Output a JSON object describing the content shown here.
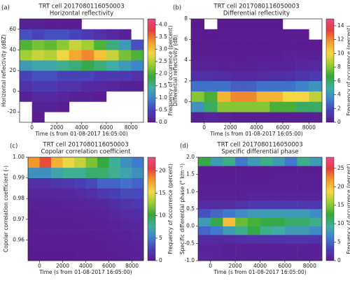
{
  "chart_data": [
    {
      "type": "heatmap",
      "panel_label": "(a)",
      "title": "TRT cell 2017080116050003",
      "subtitle": "Horizontal reflectivity",
      "xlabel": "Time (s from 01-08-2017 16:05:00)",
      "ylabel": "Horizontal reflectivity (dBZ)",
      "colorbar_label": "Frequency of occurrence (percent)",
      "xlim": [
        -1000,
        9000
      ],
      "xticks": [
        0,
        2000,
        4000,
        6000,
        8000
      ],
      "ylim": [
        -30,
        70
      ],
      "yticks": [
        -20,
        0,
        20,
        40,
        60
      ],
      "clim": [
        0,
        4.25
      ],
      "cticks": [
        {
          "value": 0,
          "label": "0.0"
        },
        0.5,
        {
          "value": 1,
          "label": "1.0"
        },
        1.5,
        {
          "value": 2,
          "label": "2.0"
        },
        2.5,
        {
          "value": 3,
          "label": "3.0"
        },
        3.5,
        {
          "value": 4,
          "label": "4.0"
        }
      ],
      "colormap": [
        "#5c1a8e",
        "#4a3fb8",
        "#3f7fd0",
        "#3fb0a0",
        "#36a83a",
        "#9acd32",
        "#f5d742",
        "#f39c2a",
        "#e53e3e",
        "#e84a8a"
      ],
      "xbins": [
        -1000,
        0,
        1000,
        2000,
        3000,
        4000,
        5000,
        6000,
        7000,
        8000,
        9000
      ],
      "ybins": [
        -30,
        -20,
        -10,
        0,
        10,
        20,
        30,
        40,
        50,
        60,
        70
      ],
      "values": [
        [
          null,
          0.05,
          null,
          null,
          null,
          null,
          null,
          null,
          null,
          null
        ],
        [
          null,
          0.1,
          0.1,
          0.05,
          null,
          null,
          null,
          null,
          null,
          null
        ],
        [
          0.1,
          0.2,
          0.2,
          0.15,
          0.1,
          0.1,
          0.05,
          null,
          null,
          null
        ],
        [
          0.3,
          0.4,
          0.4,
          0.3,
          0.3,
          0.2,
          0.2,
          0.15,
          0.1,
          0.1
        ],
        [
          0.5,
          0.6,
          0.6,
          0.5,
          0.5,
          0.5,
          0.4,
          0.4,
          0.4,
          0.3
        ],
        [
          1.2,
          1.3,
          1.3,
          1.5,
          1.6,
          1.8,
          1.6,
          1.4,
          1.2,
          1.0
        ],
        [
          2.4,
          2.6,
          2.5,
          2.8,
          3.2,
          3.4,
          3.0,
          2.6,
          2.2,
          2.0
        ],
        [
          2.0,
          2.2,
          2.1,
          2.3,
          2.6,
          2.4,
          2.0,
          1.6,
          1.2,
          0.6
        ],
        [
          0.6,
          0.5,
          0.6,
          0.6,
          0.5,
          0.4,
          0.3,
          0.2,
          0.1,
          null
        ],
        [
          0.1,
          0.1,
          0.05,
          0.05,
          0.05,
          null,
          null,
          null,
          null,
          null
        ]
      ]
    },
    {
      "type": "heatmap",
      "panel_label": "(b)",
      "title": "TRT cell 2017080116050003",
      "subtitle": "Differential reflectivity",
      "xlabel": "Time (s from 01-08-2017 16:05:00)",
      "ylabel": "Differential reflectivity (dB)",
      "colorbar_label": "Frequency of occurrence (percent)",
      "xlim": [
        -1000,
        9000
      ],
      "xticks": [
        0,
        2000,
        4000,
        6000,
        8000
      ],
      "ylim": [
        -2,
        8
      ],
      "yticks": [
        0,
        2,
        4,
        6,
        8
      ],
      "clim": [
        0,
        15
      ],
      "cticks": [
        0,
        2,
        4,
        6,
        8,
        10,
        12,
        14
      ],
      "colormap": [
        "#5c1a8e",
        "#4a3fb8",
        "#3f7fd0",
        "#3fb0a0",
        "#36a83a",
        "#9acd32",
        "#f5d742",
        "#f39c2a",
        "#e53e3e",
        "#e84a8a"
      ],
      "xbins": [
        -1000,
        0,
        1000,
        2000,
        3000,
        4000,
        5000,
        6000,
        7000,
        8000,
        9000
      ],
      "ybins": [
        -2,
        -1,
        0,
        1,
        2,
        3,
        4,
        5,
        6,
        7,
        8
      ],
      "values": [
        [
          0.3,
          0.5,
          0.3,
          0.2,
          0.2,
          0.2,
          0.2,
          0.2,
          0.2,
          0.3
        ],
        [
          4,
          6,
          8,
          8,
          8,
          8,
          7,
          7,
          6,
          6
        ],
        [
          8,
          7,
          11,
          12,
          12,
          11,
          11,
          10,
          10,
          9
        ],
        [
          3,
          3,
          3,
          2.5,
          2.5,
          3,
          3,
          3,
          3.5,
          4
        ],
        [
          1,
          1,
          0.8,
          0.7,
          0.7,
          0.8,
          0.9,
          1,
          1.2,
          1.4
        ],
        [
          0.4,
          0.4,
          0.3,
          0.3,
          0.3,
          0.4,
          0.4,
          0.5,
          0.6,
          0.7
        ],
        [
          0.2,
          0.2,
          0.2,
          0.15,
          0.2,
          0.2,
          0.2,
          0.3,
          0.3,
          0.3
        ],
        [
          0.1,
          0.1,
          0.1,
          0.1,
          0.1,
          0.1,
          0.15,
          0.15,
          0.1,
          0.1
        ],
        [
          0.1,
          0.05,
          0.1,
          0.1,
          0.1,
          0.1,
          0.1,
          0.1,
          0.1,
          null
        ],
        [
          0.05,
          null,
          0.05,
          0.05,
          0.05,
          0.05,
          0.05,
          null,
          null,
          null
        ]
      ]
    },
    {
      "type": "heatmap",
      "panel_label": "(c)",
      "title": "TRT cell 2017080116050003",
      "subtitle": "Copolar correlation coefficient",
      "xlabel": "Time (s from 01-08-2017 16:05:00)",
      "ylabel": "Copolar correlation coefficient (-)",
      "colorbar_label": "Frequency of occurrence (percent)",
      "xlim": [
        -1000,
        9000
      ],
      "xticks": [
        0,
        2000,
        4000,
        6000,
        8000
      ],
      "ylim": [
        0.95,
        1.0
      ],
      "yticks": [
        0.96,
        0.97,
        0.98,
        0.99,
        {
          "value": 1,
          "label": "1.00"
        }
      ],
      "clim": [
        0,
        23
      ],
      "cticks": [
        0,
        5,
        10,
        15,
        20
      ],
      "colormap": [
        "#5c1a8e",
        "#4a3fb8",
        "#3f7fd0",
        "#3fb0a0",
        "#36a83a",
        "#9acd32",
        "#f5d742",
        "#f39c2a",
        "#e53e3e",
        "#e84a8a"
      ],
      "xbins": [
        -1000,
        0,
        1000,
        2000,
        3000,
        4000,
        5000,
        6000,
        7000,
        8000,
        9000
      ],
      "ybins": [
        0.95,
        0.955,
        0.96,
        0.965,
        0.97,
        0.975,
        0.98,
        0.985,
        0.99,
        0.995,
        1.0
      ],
      "values": [
        [
          0.1,
          0.1,
          0.1,
          0.1,
          0.2,
          0.2,
          0.2,
          0.3,
          0.4,
          0.5
        ],
        [
          0.2,
          0.2,
          0.2,
          0.2,
          0.2,
          0.2,
          0.3,
          0.4,
          0.5,
          0.6
        ],
        [
          0.2,
          0.2,
          0.2,
          0.2,
          0.3,
          0.3,
          0.4,
          0.5,
          0.6,
          0.8
        ],
        [
          0.3,
          0.3,
          0.3,
          0.3,
          0.3,
          0.4,
          0.5,
          0.6,
          0.8,
          1
        ],
        [
          0.3,
          0.4,
          0.4,
          0.4,
          0.5,
          0.5,
          0.6,
          0.9,
          1.2,
          1.4
        ],
        [
          0.5,
          0.5,
          0.5,
          0.6,
          0.7,
          0.8,
          1,
          1.4,
          1.8,
          2
        ],
        [
          0.8,
          0.8,
          0.9,
          1,
          1.2,
          1.5,
          2,
          2.5,
          3,
          3
        ],
        [
          1.5,
          1.5,
          1.8,
          2,
          2.5,
          3,
          4,
          4,
          4.5,
          4
        ],
        [
          6,
          6,
          7,
          8,
          8,
          9,
          9,
          8,
          7,
          6
        ],
        [
          18,
          20,
          17,
          15,
          14,
          12,
          10,
          8,
          6,
          5
        ]
      ]
    },
    {
      "type": "heatmap",
      "panel_label": "(d)",
      "title": "TRT cell 2017080116050003",
      "subtitle": "Specific differential phase",
      "xlabel": "Time (s from 01-08-2017 16:05:00)",
      "ylabel": "Specific differential phase (° km⁻¹)",
      "colorbar_label": "Frequency of occurrence (percent)",
      "xlim": [
        -1000,
        9000
      ],
      "xticks": [
        0,
        2000,
        4000,
        6000,
        8000
      ],
      "ylim": [
        -1,
        2
      ],
      "yticks": [
        {
          "value": -1,
          "label": "-1.0"
        },
        -0.5,
        {
          "value": 0,
          "label": "0.0"
        },
        0.5,
        {
          "value": 1,
          "label": "1.0"
        },
        1.5,
        {
          "value": 2,
          "label": "2.0"
        }
      ],
      "clim": [
        0,
        28
      ],
      "cticks": [
        0,
        5,
        10,
        15,
        20,
        25
      ],
      "colormap": [
        "#5c1a8e",
        "#4a3fb8",
        "#3f7fd0",
        "#3fb0a0",
        "#36a83a",
        "#9acd32",
        "#f5d742",
        "#f39c2a",
        "#e53e3e",
        "#e84a8a"
      ],
      "xbins": [
        -1000,
        0,
        1000,
        2000,
        3000,
        4000,
        5000,
        6000,
        7000,
        8000,
        9000
      ],
      "ybins": [
        -1,
        -0.75,
        -0.5,
        -0.25,
        0,
        0.25,
        0.5,
        0.75,
        1,
        1.25,
        1.5,
        1.75,
        2
      ],
      "values": [
        [
          1,
          0.8,
          0.6,
          0.6,
          0.5,
          0.5,
          0.5,
          0.5,
          0.5,
          0.6
        ],
        [
          0.8,
          0.8,
          0.7,
          0.6,
          0.6,
          0.6,
          0.6,
          0.6,
          0.6,
          0.7
        ],
        [
          1.5,
          1.5,
          1.5,
          1.8,
          2,
          2,
          2,
          2.2,
          2.2,
          2
        ],
        [
          5,
          6,
          8,
          10,
          12,
          10,
          9,
          8,
          8,
          7
        ],
        [
          8,
          12,
          20,
          14,
          13,
          12,
          12,
          11,
          11,
          10
        ],
        [
          4,
          5,
          6,
          7,
          8,
          8,
          8,
          8,
          8,
          7
        ],
        [
          1.5,
          1.5,
          1.5,
          2,
          2.5,
          2.5,
          2.5,
          2.5,
          2.5,
          2.5
        ],
        [
          0.6,
          0.6,
          0.6,
          0.7,
          0.8,
          0.8,
          0.8,
          0.8,
          0.8,
          0.8
        ],
        [
          0.4,
          0.4,
          0.4,
          0.4,
          0.5,
          0.5,
          0.5,
          0.5,
          0.5,
          0.5
        ],
        [
          0.3,
          0.3,
          0.3,
          0.3,
          0.3,
          0.3,
          0.4,
          0.4,
          0.4,
          0.4
        ],
        [
          0.3,
          0.3,
          0.3,
          0.3,
          0.3,
          0.3,
          0.3,
          0.3,
          0.3,
          0.3
        ],
        [
          12,
          8,
          10,
          6,
          8,
          10,
          8,
          6,
          10,
          8
        ]
      ]
    }
  ]
}
